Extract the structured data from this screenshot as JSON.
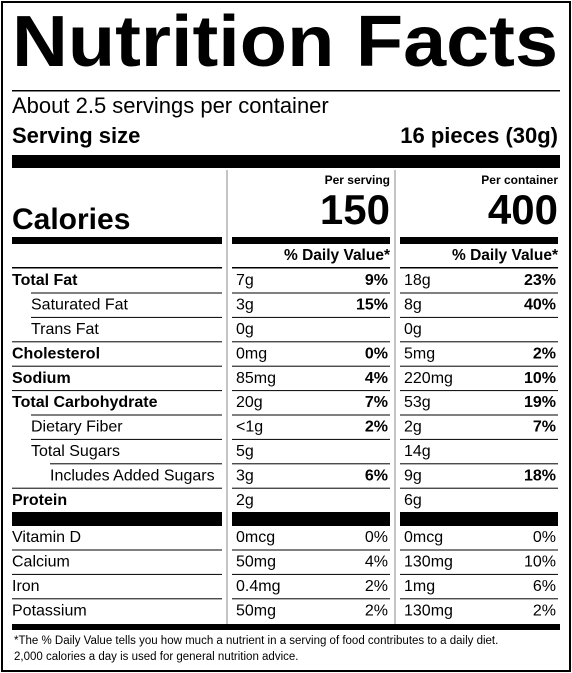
{
  "header": {
    "title": "Nutrition Facts",
    "servings": "About 2.5 servings per container",
    "serving_size_label": "Serving size",
    "serving_size_value": "16 pieces (30g)"
  },
  "calories_label": "Calories",
  "columns": [
    {
      "heading": "Per serving",
      "calories": "150"
    },
    {
      "heading": "Per container",
      "calories": "400"
    }
  ],
  "dv_heading": "% Daily Value*",
  "nutrients": [
    {
      "name": "Total Fat",
      "bold": true,
      "indent": 0,
      "serving": [
        "7g",
        "9%"
      ],
      "container": [
        "18g",
        "23%"
      ]
    },
    {
      "name": "Saturated Fat",
      "bold": false,
      "indent": 1,
      "serving": [
        "3g",
        "15%"
      ],
      "container": [
        "8g",
        "40%"
      ]
    },
    {
      "name": "Trans Fat",
      "bold": false,
      "indent": 1,
      "serving": [
        "0g",
        null
      ],
      "container": [
        "0g",
        null
      ]
    },
    {
      "name": "Cholesterol",
      "bold": true,
      "indent": 0,
      "serving": [
        "0mg",
        "0%"
      ],
      "container": [
        "5mg",
        "2%"
      ]
    },
    {
      "name": "Sodium",
      "bold": true,
      "indent": 0,
      "serving": [
        "85mg",
        "4%"
      ],
      "container": [
        "220mg",
        "10%"
      ]
    },
    {
      "name": "Total Carbohydrate",
      "bold": true,
      "indent": 0,
      "serving": [
        "20g",
        "7%"
      ],
      "container": [
        "53g",
        "19%"
      ]
    },
    {
      "name": "Dietary Fiber",
      "bold": false,
      "indent": 1,
      "serving": [
        "<1g",
        "2%"
      ],
      "container": [
        "2g",
        "7%"
      ]
    },
    {
      "name": "Total Sugars",
      "bold": false,
      "indent": 1,
      "serving": [
        "5g",
        null
      ],
      "container": [
        "14g",
        null
      ]
    },
    {
      "name": "Includes Added Sugars",
      "bold": false,
      "indent": 2,
      "serving": [
        "3g",
        "6%"
      ],
      "container": [
        "9g",
        "18%"
      ]
    },
    {
      "name": "Protein",
      "bold": true,
      "indent": 0,
      "serving": [
        "2g",
        null
      ],
      "container": [
        "6g",
        null
      ]
    }
  ],
  "vitamins": [
    {
      "name": "Vitamin D",
      "serving": [
        "0mcg",
        "0%"
      ],
      "container": [
        "0mcg",
        "0%"
      ]
    },
    {
      "name": "Calcium",
      "serving": [
        "50mg",
        "4%"
      ],
      "container": [
        "130mg",
        "10%"
      ]
    },
    {
      "name": "Iron",
      "serving": [
        "0.4mg",
        "2%"
      ],
      "container": [
        "1mg",
        "6%"
      ]
    },
    {
      "name": "Potassium",
      "serving": [
        "50mg",
        "2%"
      ],
      "container": [
        "130mg",
        "2%"
      ]
    }
  ],
  "footnote": [
    "*The % Daily Value tells you how much a nutrient in a serving of food contributes to a daily diet.",
    "2,000 calories a day is used for general nutrition advice."
  ]
}
